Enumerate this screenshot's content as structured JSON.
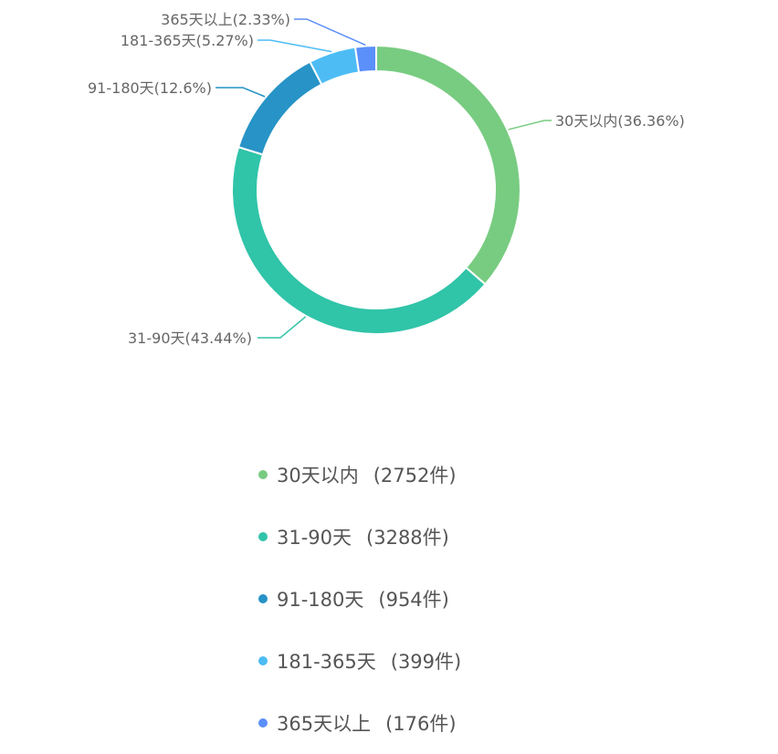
{
  "chart_data": {
    "type": "pie",
    "variant": "donut",
    "title": "",
    "slices": [
      {
        "name": "30天以内",
        "value": 2752,
        "percent_label": "36.36%",
        "count_label": "(2752件)",
        "color": "#78cc81"
      },
      {
        "name": "31-90天",
        "value": 3288,
        "percent_label": "43.44%",
        "count_label": "(3288件)",
        "color": "#30c4a8"
      },
      {
        "name": "91-180天",
        "value": 954,
        "percent_label": "12.6%",
        "count_label": "(954件)",
        "color": "#2793c6"
      },
      {
        "name": "181-365天",
        "value": 399,
        "percent_label": "5.27%",
        "count_label": "(399件)",
        "color": "#4dbcf5"
      },
      {
        "name": "365天以上",
        "value": 176,
        "percent_label": "2.33%",
        "count_label": "(176件)",
        "color": "#5b8ff9"
      }
    ],
    "legend_position": "bottom"
  }
}
